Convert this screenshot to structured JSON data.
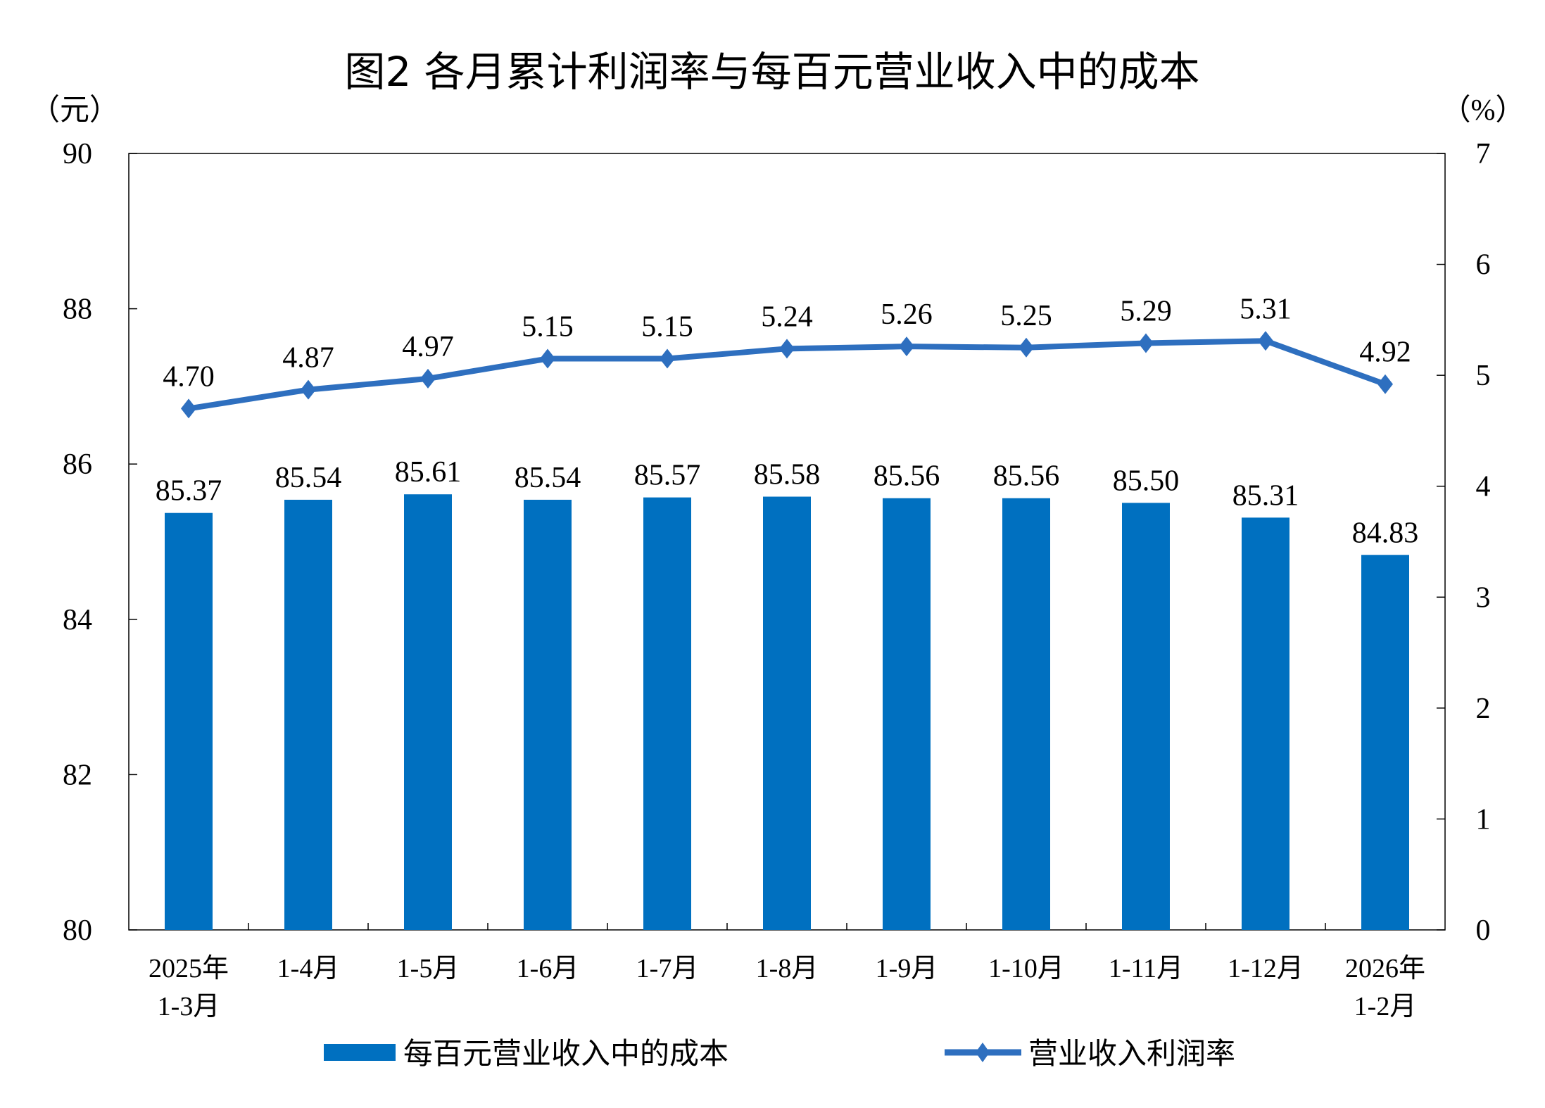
{
  "chart_data": {
    "type": "bar+line",
    "title": "图2  各月累计利润率与每百元营业收入中的成本",
    "left_unit": "（元）",
    "right_unit": "（%）",
    "categories": [
      [
        "2025年",
        "1-3月"
      ],
      [
        "1-4月"
      ],
      [
        "1-5月"
      ],
      [
        "1-6月"
      ],
      [
        "1-7月"
      ],
      [
        "1-8月"
      ],
      [
        "1-9月"
      ],
      [
        "1-10月"
      ],
      [
        "1-11月"
      ],
      [
        "1-12月"
      ],
      [
        "2026年",
        "1-2月"
      ]
    ],
    "left_axis": {
      "ylim": [
        80,
        90
      ],
      "ticks": [
        "80",
        "82",
        "84",
        "86",
        "88",
        "90"
      ]
    },
    "right_axis": {
      "ylim": [
        0,
        7
      ],
      "ticks": [
        "0",
        "1",
        "2",
        "3",
        "4",
        "5",
        "6",
        "7"
      ]
    },
    "series": [
      {
        "name": "每百元营业收入中的成本",
        "type": "bar",
        "axis": "left",
        "color": "#0070C0",
        "values": [
          85.37,
          85.54,
          85.61,
          85.54,
          85.57,
          85.58,
          85.56,
          85.56,
          85.5,
          85.31,
          84.83
        ],
        "labels": [
          "85.37",
          "85.54",
          "85.61",
          "85.54",
          "85.57",
          "85.58",
          "85.56",
          "85.56",
          "85.50",
          "85.31",
          "84.83"
        ]
      },
      {
        "name": "营业收入利润率",
        "type": "line",
        "axis": "right",
        "color": "#2E6FBF",
        "marker": "diamond",
        "values": [
          4.7,
          4.87,
          4.97,
          5.15,
          5.15,
          5.24,
          5.26,
          5.25,
          5.29,
          5.31,
          4.92
        ],
        "labels": [
          "4.70",
          "4.87",
          "4.97",
          "5.15",
          "5.15",
          "5.24",
          "5.26",
          "5.25",
          "5.29",
          "5.31",
          "4.92"
        ]
      }
    ],
    "legend": "bottom",
    "grid": false
  }
}
